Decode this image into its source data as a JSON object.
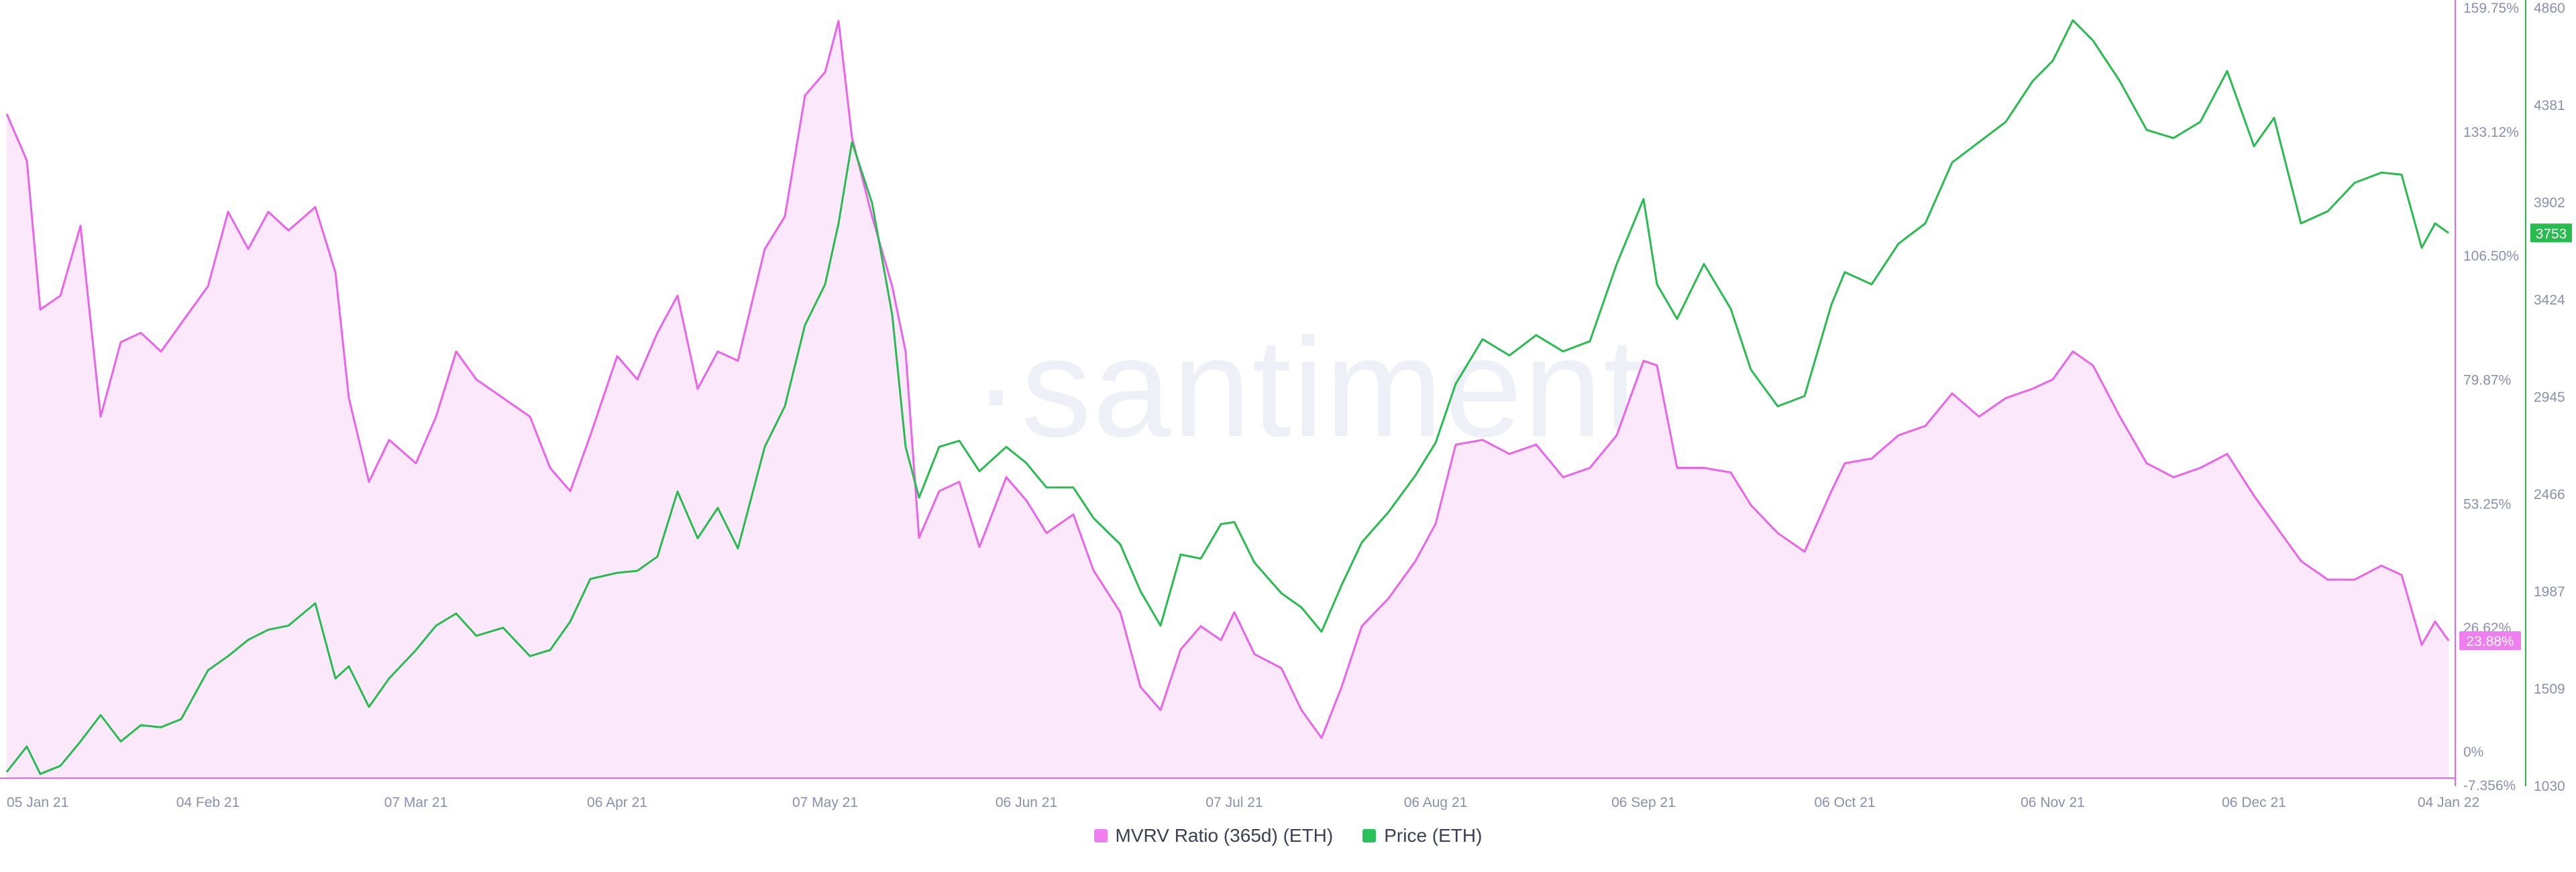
{
  "watermark": "·santiment",
  "legend": [
    {
      "label": "MVRV Ratio (365d) (ETH)",
      "color": "#ef7ef0"
    },
    {
      "label": "Price (ETH)",
      "color": "#2bc15a"
    }
  ],
  "colors": {
    "mvrv_line": "#ea64ea",
    "mvrv_fill": "#fbe8fb",
    "price_line": "#28bb4f",
    "axis_text": "#8a8fae",
    "mvrv_badge": "#ef7ef0",
    "price_badge": "#28bb4f"
  },
  "chart_data": {
    "type": "line",
    "x_ticks": [
      "05 Jan 21",
      "04 Feb 21",
      "07 Mar 21",
      "06 Apr 21",
      "07 May 21",
      "06 Jun 21",
      "07 Jul 21",
      "06 Aug 21",
      "06 Sep 21",
      "06 Oct 21",
      "06 Nov 21",
      "06 Dec 21",
      "04 Jan 22"
    ],
    "y_left": {
      "title": "",
      "ticks": [
        "159.75%",
        "133.12%",
        "106.50%",
        "79.87%",
        "53.25%",
        "26.62%",
        "0%",
        "-7.356%"
      ],
      "range": [
        -7.356,
        159.75
      ]
    },
    "y_right": {
      "title": "",
      "ticks": [
        "4860",
        "4381",
        "3902",
        "3424",
        "2945",
        "2466",
        "1987",
        "1509",
        "1030"
      ],
      "range": [
        1030,
        4860
      ]
    },
    "current_badges": {
      "mvrv": "23.88%",
      "price": "3753"
    },
    "series": [
      {
        "name": "MVRV Ratio (365d) (ETH)",
        "axis": "left",
        "style": "area",
        "points": [
          [
            "05 Jan 21",
            137
          ],
          [
            "08 Jan 21",
            127
          ],
          [
            "10 Jan 21",
            95
          ],
          [
            "13 Jan 21",
            98
          ],
          [
            "16 Jan 21",
            113
          ],
          [
            "19 Jan 21",
            72
          ],
          [
            "22 Jan 21",
            88
          ],
          [
            "25 Jan 21",
            90
          ],
          [
            "28 Jan 21",
            86
          ],
          [
            "31 Jan 21",
            92
          ],
          [
            "04 Feb 21",
            100
          ],
          [
            "07 Feb 21",
            116
          ],
          [
            "10 Feb 21",
            108
          ],
          [
            "13 Feb 21",
            116
          ],
          [
            "16 Feb 21",
            112
          ],
          [
            "20 Feb 21",
            117
          ],
          [
            "23 Feb 21",
            103
          ],
          [
            "25 Feb 21",
            76
          ],
          [
            "28 Feb 21",
            58
          ],
          [
            "03 Mar 21",
            67
          ],
          [
            "07 Mar 21",
            62
          ],
          [
            "10 Mar 21",
            72
          ],
          [
            "13 Mar 21",
            86
          ],
          [
            "16 Mar 21",
            80
          ],
          [
            "20 Mar 21",
            76
          ],
          [
            "24 Mar 21",
            72
          ],
          [
            "27 Mar 21",
            61
          ],
          [
            "30 Mar 21",
            56
          ],
          [
            "02 Apr 21",
            68
          ],
          [
            "06 Apr 21",
            85
          ],
          [
            "09 Apr 21",
            80
          ],
          [
            "12 Apr 21",
            90
          ],
          [
            "15 Apr 21",
            98
          ],
          [
            "18 Apr 21",
            78
          ],
          [
            "21 Apr 21",
            86
          ],
          [
            "24 Apr 21",
            84
          ],
          [
            "28 Apr 21",
            108
          ],
          [
            "01 May 21",
            115
          ],
          [
            "04 May 21",
            141
          ],
          [
            "07 May 21",
            146
          ],
          [
            "09 May 21",
            157
          ],
          [
            "11 May 21",
            132
          ],
          [
            "14 May 21",
            115
          ],
          [
            "17 May 21",
            100
          ],
          [
            "19 May 21",
            86
          ],
          [
            "21 May 21",
            46
          ],
          [
            "24 May 21",
            56
          ],
          [
            "27 May 21",
            58
          ],
          [
            "30 May 21",
            44
          ],
          [
            "03 Jun 21",
            59
          ],
          [
            "06 Jun 21",
            54
          ],
          [
            "09 Jun 21",
            47
          ],
          [
            "13 Jun 21",
            51
          ],
          [
            "16 Jun 21",
            39
          ],
          [
            "20 Jun 21",
            30
          ],
          [
            "23 Jun 21",
            14
          ],
          [
            "26 Jun 21",
            9
          ],
          [
            "29 Jun 21",
            22
          ],
          [
            "02 Jul 21",
            27
          ],
          [
            "05 Jul 21",
            24
          ],
          [
            "07 Jul 21",
            30
          ],
          [
            "10 Jul 21",
            21
          ],
          [
            "14 Jul 21",
            18
          ],
          [
            "17 Jul 21",
            9
          ],
          [
            "20 Jul 21",
            3
          ],
          [
            "23 Jul 21",
            14
          ],
          [
            "26 Jul 21",
            27
          ],
          [
            "30 Jul 21",
            33
          ],
          [
            "03 Aug 21",
            41
          ],
          [
            "06 Aug 21",
            49
          ],
          [
            "09 Aug 21",
            66
          ],
          [
            "13 Aug 21",
            67
          ],
          [
            "17 Aug 21",
            64
          ],
          [
            "21 Aug 21",
            66
          ],
          [
            "25 Aug 21",
            59
          ],
          [
            "29 Aug 21",
            61
          ],
          [
            "02 Sep 21",
            68
          ],
          [
            "06 Sep 21",
            84
          ],
          [
            "08 Sep 21",
            83
          ],
          [
            "11 Sep 21",
            61
          ],
          [
            "15 Sep 21",
            61
          ],
          [
            "19 Sep 21",
            60
          ],
          [
            "22 Sep 21",
            53
          ],
          [
            "26 Sep 21",
            47
          ],
          [
            "30 Sep 21",
            43
          ],
          [
            "04 Oct 21",
            56
          ],
          [
            "06 Oct 21",
            62
          ],
          [
            "10 Oct 21",
            63
          ],
          [
            "14 Oct 21",
            68
          ],
          [
            "18 Oct 21",
            70
          ],
          [
            "22 Oct 21",
            77
          ],
          [
            "26 Oct 21",
            72
          ],
          [
            "30 Oct 21",
            76
          ],
          [
            "03 Nov 21",
            78
          ],
          [
            "06 Nov 21",
            80
          ],
          [
            "09 Nov 21",
            86
          ],
          [
            "12 Nov 21",
            83
          ],
          [
            "16 Nov 21",
            72
          ],
          [
            "20 Nov 21",
            62
          ],
          [
            "24 Nov 21",
            59
          ],
          [
            "28 Nov 21",
            61
          ],
          [
            "02 Dec 21",
            64
          ],
          [
            "06 Dec 21",
            55
          ],
          [
            "09 Dec 21",
            49
          ],
          [
            "13 Dec 21",
            41
          ],
          [
            "17 Dec 21",
            37
          ],
          [
            "21 Dec 21",
            37
          ],
          [
            "25 Dec 21",
            40
          ],
          [
            "28 Dec 21",
            38
          ],
          [
            "31 Dec 21",
            23
          ],
          [
            "02 Jan 22",
            28
          ],
          [
            "04 Jan 22",
            23.88
          ]
        ]
      },
      {
        "name": "Price (ETH)",
        "axis": "right",
        "style": "line",
        "points": [
          [
            "05 Jan 21",
            1100
          ],
          [
            "08 Jan 21",
            1225
          ],
          [
            "10 Jan 21",
            1090
          ],
          [
            "13 Jan 21",
            1130
          ],
          [
            "16 Jan 21",
            1250
          ],
          [
            "19 Jan 21",
            1380
          ],
          [
            "22 Jan 21",
            1250
          ],
          [
            "25 Jan 21",
            1330
          ],
          [
            "28 Jan 21",
            1320
          ],
          [
            "31 Jan 21",
            1360
          ],
          [
            "04 Feb 21",
            1600
          ],
          [
            "07 Feb 21",
            1670
          ],
          [
            "10 Feb 21",
            1750
          ],
          [
            "13 Feb 21",
            1800
          ],
          [
            "16 Feb 21",
            1820
          ],
          [
            "20 Feb 21",
            1930
          ],
          [
            "23 Feb 21",
            1560
          ],
          [
            "25 Feb 21",
            1620
          ],
          [
            "28 Feb 21",
            1420
          ],
          [
            "03 Mar 21",
            1560
          ],
          [
            "07 Mar 21",
            1700
          ],
          [
            "10 Mar 21",
            1820
          ],
          [
            "13 Mar 21",
            1880
          ],
          [
            "16 Mar 21",
            1770
          ],
          [
            "20 Mar 21",
            1810
          ],
          [
            "24 Mar 21",
            1670
          ],
          [
            "27 Mar 21",
            1700
          ],
          [
            "30 Mar 21",
            1840
          ],
          [
            "02 Apr 21",
            2050
          ],
          [
            "06 Apr 21",
            2080
          ],
          [
            "09 Apr 21",
            2090
          ],
          [
            "12 Apr 21",
            2160
          ],
          [
            "15 Apr 21",
            2480
          ],
          [
            "18 Apr 21",
            2250
          ],
          [
            "21 Apr 21",
            2400
          ],
          [
            "24 Apr 21",
            2200
          ],
          [
            "28 Apr 21",
            2700
          ],
          [
            "01 May 21",
            2900
          ],
          [
            "04 May 21",
            3300
          ],
          [
            "07 May 21",
            3500
          ],
          [
            "09 May 21",
            3800
          ],
          [
            "11 May 21",
            4200
          ],
          [
            "14 May 21",
            3900
          ],
          [
            "17 May 21",
            3350
          ],
          [
            "19 May 21",
            2700
          ],
          [
            "21 May 21",
            2450
          ],
          [
            "24 May 21",
            2700
          ],
          [
            "27 May 21",
            2730
          ],
          [
            "30 May 21",
            2580
          ],
          [
            "03 Jun 21",
            2700
          ],
          [
            "06 Jun 21",
            2620
          ],
          [
            "09 Jun 21",
            2500
          ],
          [
            "13 Jun 21",
            2500
          ],
          [
            "16 Jun 21",
            2350
          ],
          [
            "20 Jun 21",
            2220
          ],
          [
            "23 Jun 21",
            1990
          ],
          [
            "26 Jun 21",
            1820
          ],
          [
            "29 Jun 21",
            2170
          ],
          [
            "02 Jul 21",
            2150
          ],
          [
            "05 Jul 21",
            2320
          ],
          [
            "07 Jul 21",
            2330
          ],
          [
            "10 Jul 21",
            2130
          ],
          [
            "14 Jul 21",
            1980
          ],
          [
            "17 Jul 21",
            1910
          ],
          [
            "20 Jul 21",
            1790
          ],
          [
            "23 Jul 21",
            2020
          ],
          [
            "26 Jul 21",
            2230
          ],
          [
            "30 Jul 21",
            2380
          ],
          [
            "03 Aug 21",
            2560
          ],
          [
            "06 Aug 21",
            2720
          ],
          [
            "09 Aug 21",
            3010
          ],
          [
            "13 Aug 21",
            3230
          ],
          [
            "17 Aug 21",
            3150
          ],
          [
            "21 Aug 21",
            3250
          ],
          [
            "25 Aug 21",
            3170
          ],
          [
            "29 Aug 21",
            3220
          ],
          [
            "02 Sep 21",
            3600
          ],
          [
            "06 Sep 21",
            3920
          ],
          [
            "08 Sep 21",
            3500
          ],
          [
            "11 Sep 21",
            3330
          ],
          [
            "15 Sep 21",
            3600
          ],
          [
            "19 Sep 21",
            3380
          ],
          [
            "22 Sep 21",
            3080
          ],
          [
            "26 Sep 21",
            2900
          ],
          [
            "30 Sep 21",
            2950
          ],
          [
            "04 Oct 21",
            3400
          ],
          [
            "06 Oct 21",
            3560
          ],
          [
            "10 Oct 21",
            3500
          ],
          [
            "14 Oct 21",
            3700
          ],
          [
            "18 Oct 21",
            3800
          ],
          [
            "22 Oct 21",
            4100
          ],
          [
            "26 Oct 21",
            4200
          ],
          [
            "30 Oct 21",
            4300
          ],
          [
            "03 Nov 21",
            4500
          ],
          [
            "06 Nov 21",
            4600
          ],
          [
            "09 Nov 21",
            4800
          ],
          [
            "12 Nov 21",
            4700
          ],
          [
            "16 Nov 21",
            4500
          ],
          [
            "20 Nov 21",
            4260
          ],
          [
            "24 Nov 21",
            4220
          ],
          [
            "28 Nov 21",
            4300
          ],
          [
            "02 Dec 21",
            4550
          ],
          [
            "06 Dec 21",
            4180
          ],
          [
            "09 Dec 21",
            4320
          ],
          [
            "13 Dec 21",
            3800
          ],
          [
            "17 Dec 21",
            3860
          ],
          [
            "21 Dec 21",
            4000
          ],
          [
            "25 Dec 21",
            4050
          ],
          [
            "28 Dec 21",
            4040
          ],
          [
            "31 Dec 21",
            3680
          ],
          [
            "02 Jan 22",
            3800
          ],
          [
            "04 Jan 22",
            3753
          ]
        ]
      }
    ]
  }
}
